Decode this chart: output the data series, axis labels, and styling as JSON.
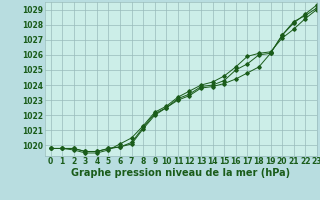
{
  "background_color": "#b8dde0",
  "plot_bg_color": "#cceee8",
  "grid_color": "#99bbbb",
  "line_color": "#1a5c1a",
  "marker_color": "#1a5c1a",
  "xlabel": "Graphe pression niveau de la mer (hPa)",
  "xlabel_fontsize": 7,
  "tick_fontsize": 5.5,
  "xmin": -0.5,
  "xmax": 23,
  "ymin": 1019.3,
  "ymax": 1029.5,
  "yticks": [
    1020,
    1021,
    1022,
    1023,
    1024,
    1025,
    1026,
    1027,
    1028,
    1029
  ],
  "series1": [
    1019.8,
    1019.8,
    1019.8,
    1019.6,
    1019.6,
    1019.8,
    1019.9,
    1020.1,
    1021.1,
    1022.0,
    1022.5,
    1023.0,
    1023.3,
    1023.8,
    1023.9,
    1024.1,
    1024.4,
    1024.8,
    1025.2,
    1026.1,
    1027.3,
    1028.1,
    1028.7,
    1029.3
  ],
  "series2": [
    1019.8,
    1019.8,
    1019.7,
    1019.5,
    1019.5,
    1019.7,
    1020.1,
    1020.5,
    1021.3,
    1022.2,
    1022.6,
    1023.2,
    1023.6,
    1024.0,
    1024.2,
    1024.6,
    1025.2,
    1025.9,
    1026.1,
    1026.2,
    1027.1,
    1027.7,
    1028.4,
    1029.0
  ],
  "series3": [
    1019.8,
    1019.8,
    1019.8,
    1019.6,
    1019.6,
    1019.8,
    1019.9,
    1020.2,
    1021.2,
    1022.1,
    1022.5,
    1023.1,
    1023.4,
    1023.9,
    1024.0,
    1024.3,
    1025.0,
    1025.4,
    1026.0,
    1026.1,
    1027.3,
    1028.2,
    1028.6,
    1029.1
  ],
  "figsize": [
    3.2,
    2.0
  ],
  "dpi": 100
}
